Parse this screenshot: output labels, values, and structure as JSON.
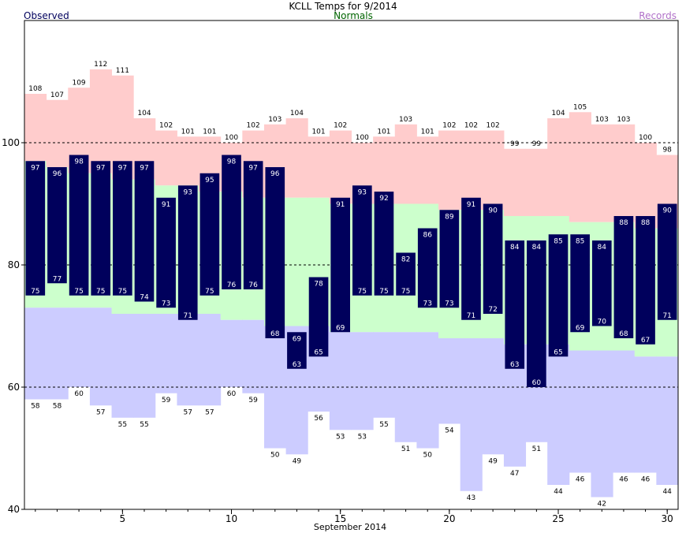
{
  "chart_data": {
    "type": "bar",
    "title": "KCLL Temps for 9/2014",
    "legend": {
      "observed": {
        "label": "Observed",
        "color": "#00005c"
      },
      "normals": {
        "label": "Normals",
        "color": "#006400"
      },
      "records": {
        "label": "Records",
        "color": "#b070c8"
      }
    },
    "xlabel": "September 2014",
    "xlim": [
      1,
      30
    ],
    "ylim": [
      40,
      120
    ],
    "xticks": [
      5,
      10,
      15,
      20,
      25,
      30
    ],
    "yticks": [
      40,
      60,
      80,
      100
    ],
    "gridlines_y": [
      60,
      80,
      100
    ],
    "colors": {
      "record_band": "#ffcccc",
      "normal_band": "#ccffcc",
      "low_band": "#ccccff",
      "observed_bar": "#00005c",
      "grid": "#000000"
    },
    "days": [
      1,
      2,
      3,
      4,
      5,
      6,
      7,
      8,
      9,
      10,
      11,
      12,
      13,
      14,
      15,
      16,
      17,
      18,
      19,
      20,
      21,
      22,
      23,
      24,
      25,
      26,
      27,
      28,
      29,
      30
    ],
    "record_high": [
      108,
      107,
      109,
      112,
      111,
      104,
      102,
      101,
      101,
      100,
      102,
      103,
      104,
      101,
      102,
      100,
      101,
      103,
      101,
      102,
      102,
      102,
      99,
      99,
      104,
      105,
      103,
      103,
      100,
      98
    ],
    "record_high_labels": [
      "108",
      "107",
      "109",
      "112",
      "111",
      "104",
      "102",
      "101",
      "101",
      "100",
      "102",
      "103",
      "104",
      "101",
      "102",
      "100",
      "101",
      "103",
      "101",
      "102",
      "102",
      "102",
      "99",
      "99",
      "104",
      "105",
      "103",
      "103",
      "100",
      "98"
    ],
    "normal_high": [
      97,
      96,
      95,
      95,
      94,
      94,
      93,
      93,
      92,
      92,
      91,
      91,
      91,
      91,
      90,
      90,
      90,
      90,
      90,
      89,
      89,
      89,
      88,
      88,
      88,
      87,
      87,
      87,
      86,
      86
    ],
    "normal_low": [
      73,
      73,
      73,
      73,
      72,
      72,
      72,
      72,
      72,
      71,
      71,
      70,
      70,
      70,
      69,
      69,
      69,
      69,
      69,
      68,
      68,
      68,
      67,
      67,
      67,
      66,
      66,
      66,
      65,
      65
    ],
    "record_low": [
      58,
      58,
      60,
      57,
      55,
      55,
      59,
      57,
      57,
      60,
      59,
      50,
      49,
      56,
      53,
      53,
      55,
      51,
      50,
      54,
      43,
      49,
      47,
      51,
      44,
      46,
      42,
      46,
      46,
      44
    ],
    "record_low_labels": [
      "58",
      "58",
      "60",
      "57",
      "55",
      "55",
      "59",
      "57",
      "57",
      "60",
      "59",
      "50",
      "49",
      "56",
      "53",
      "53",
      "55",
      "51",
      "50",
      "54",
      "43",
      "49",
      "47",
      "51",
      "44",
      "46",
      "42",
      "46",
      "46",
      "44"
    ],
    "observed_high": [
      97,
      96,
      98,
      97,
      97,
      97,
      91,
      93,
      95,
      98,
      97,
      96,
      69,
      78,
      91,
      93,
      92,
      82,
      86,
      89,
      91,
      90,
      84,
      84,
      85,
      85,
      84,
      88,
      88,
      90
    ],
    "observed_high_labels": [
      "97",
      "96",
      "98",
      "97",
      "97",
      "97",
      "91",
      "93",
      "95",
      "98",
      "97",
      "96",
      "69",
      "78",
      "91",
      "93",
      "92",
      "82",
      "86",
      "89",
      "91",
      "90",
      "84",
      "84",
      "85",
      "85",
      "84",
      "88",
      "88",
      "90"
    ],
    "observed_low": [
      75,
      77,
      75,
      75,
      75,
      74,
      73,
      71,
      75,
      76,
      76,
      68,
      63,
      65,
      69,
      75,
      75,
      75,
      73,
      73,
      71,
      72,
      63,
      60,
      65,
      69,
      70,
      68,
      67,
      71
    ],
    "observed_low_labels": [
      "75",
      "77",
      "75",
      "75",
      "75",
      "74",
      "73",
      "71",
      "75",
      "76",
      "76",
      "68",
      "63",
      "65",
      "69",
      "75",
      "75",
      "75",
      "73",
      "73",
      "71",
      "72",
      "63",
      "60",
      "65",
      "69",
      "70",
      "68",
      "67",
      "71"
    ]
  }
}
